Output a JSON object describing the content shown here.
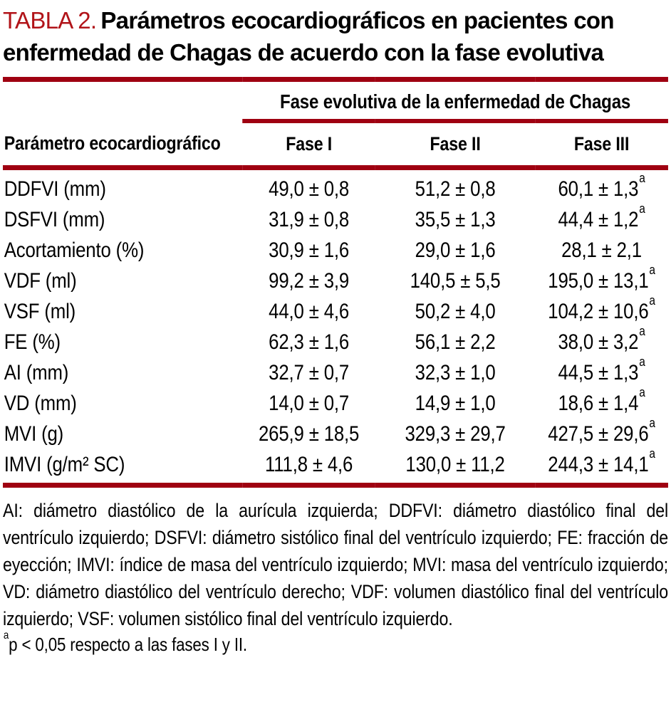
{
  "colors": {
    "title_red": "#B11419",
    "rule_red": "#9F0011"
  },
  "title": {
    "label": "TABLA 2.",
    "text": "Parámetros ecocardiográficos en pacientes con enfermedad de Chagas de acuerdo con la fase evolutiva"
  },
  "table": {
    "group_header": "Fase evolutiva de la enfermedad de Chagas",
    "columns": [
      "Parámetro ecocardiográfico",
      "Fase I",
      "Fase II",
      "Fase III"
    ],
    "rows": [
      {
        "param": "DDFVI (mm)",
        "values": [
          "49,0 ± 0,8",
          "51,2 ± 0,8",
          "60,1 ± 1,3"
        ],
        "sup": [
          "",
          "",
          "a"
        ]
      },
      {
        "param": "DSFVI (mm)",
        "values": [
          "31,9 ± 0,8",
          "35,5 ± 1,3",
          "44,4 ± 1,2"
        ],
        "sup": [
          "",
          "",
          "a"
        ]
      },
      {
        "param": "Acortamiento (%)",
        "values": [
          "30,9 ± 1,6",
          "29,0 ± 1,6",
          "28,1 ± 2,1"
        ],
        "sup": [
          "",
          "",
          ""
        ]
      },
      {
        "param": "VDF (ml)",
        "values": [
          "99,2 ± 3,9",
          "140,5 ± 5,5",
          "195,0 ± 13,1"
        ],
        "sup": [
          "",
          "",
          "a"
        ]
      },
      {
        "param": "VSF (ml)",
        "values": [
          "44,0 ± 4,6",
          "50,2 ± 4,0",
          "104,2 ± 10,6"
        ],
        "sup": [
          "",
          "",
          "a"
        ]
      },
      {
        "param": "FE (%)",
        "values": [
          "62,3 ± 1,6",
          "56,1 ± 2,2",
          "38,0 ± 3,2"
        ],
        "sup": [
          "",
          "",
          "a"
        ]
      },
      {
        "param": "AI (mm)",
        "values": [
          "32,7 ± 0,7",
          "32,3 ± 1,0",
          "44,5 ± 1,3"
        ],
        "sup": [
          "",
          "",
          "a"
        ]
      },
      {
        "param": "VD (mm)",
        "values": [
          "14,0 ± 0,7",
          "14,9 ± 1,0",
          "18,6 ± 1,4"
        ],
        "sup": [
          "",
          "",
          "a"
        ]
      },
      {
        "param": "MVI (g)",
        "values": [
          "265,9 ± 18,5",
          "329,3 ± 29,7",
          "427,5 ± 29,6"
        ],
        "sup": [
          "",
          "",
          "a"
        ]
      },
      {
        "param": "IMVI (g/m² SC)",
        "values": [
          "111,8 ± 4,6",
          "130,0 ± 11,2",
          "244,3 ± 14,1"
        ],
        "sup": [
          "",
          "",
          "a"
        ]
      }
    ]
  },
  "footnotes": {
    "abbreviations": "AI: diámetro diastólico de la aurícula izquierda; DDFVI: diámetro diastólico final del ventrículo izquierdo; DSFVI: diámetro sistólico final del ventrículo izquierdo; FE: fracción de eyección; IMVI: índice de masa del ventrículo izquierdo; MVI: masa del ventrículo izquierdo; VD: diámetro diastólico del ventrículo derecho; VDF: volumen diastólico final del ventrículo izquierdo; VSF: volumen sistólico final del ventrículo izquierdo.",
    "significance_sup": "a",
    "significance": "p < 0,05 respecto a las fases I y II."
  }
}
